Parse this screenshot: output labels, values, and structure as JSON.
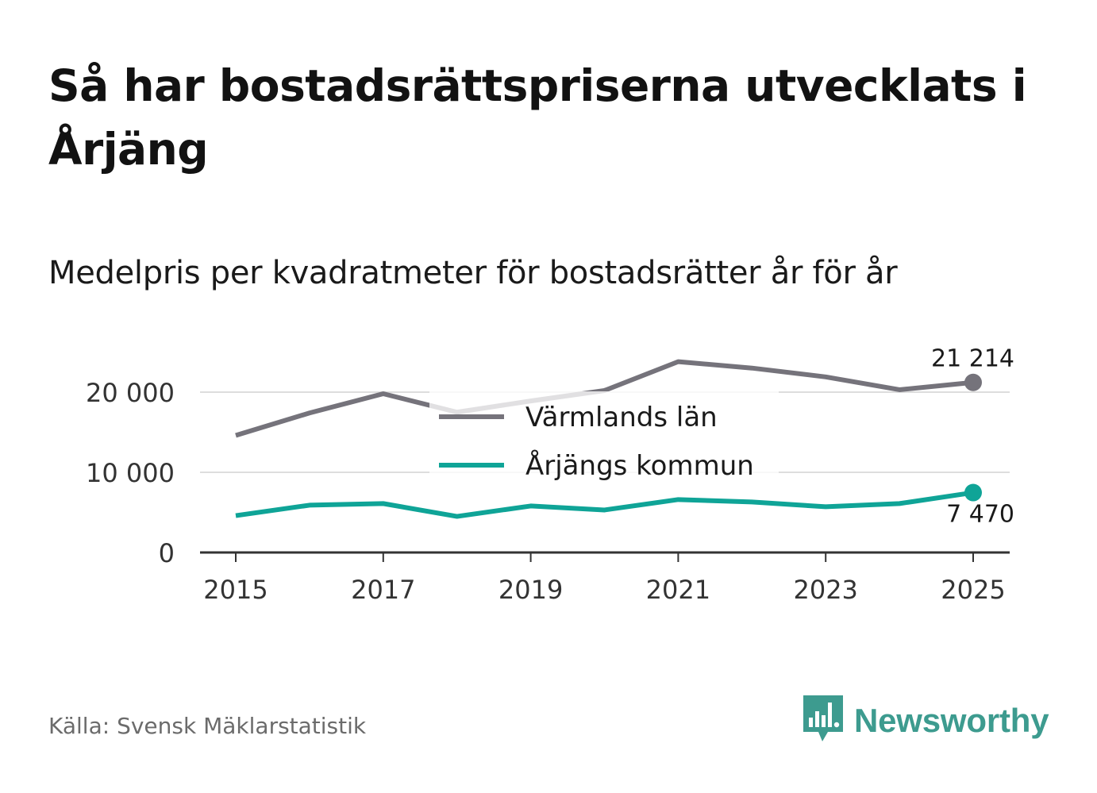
{
  "title": "Så har bostadsrättspriserna utvecklats i Årjäng",
  "subtitle": "Medelpris per kvadratmeter för bostadsrätter år för år",
  "source": "Källa: Svensk Mäklarstatistik",
  "brand": {
    "name": "Newsworthy",
    "color": "#3d9b8f",
    "icon": "newsworthy-logo-icon"
  },
  "chart_data": {
    "type": "line",
    "title": "Medelpris per kvadratmeter för bostadsrätter år för år",
    "xlabel": "",
    "ylabel": "",
    "x": [
      2015,
      2016,
      2017,
      2018,
      2019,
      2020,
      2021,
      2022,
      2023,
      2024,
      2025
    ],
    "xticks": [
      "2015",
      "2017",
      "2019",
      "2021",
      "2023",
      "2025"
    ],
    "xtick_values": [
      2015,
      2017,
      2019,
      2021,
      2023,
      2025
    ],
    "yticks": [
      "0",
      "10 000",
      "20 000"
    ],
    "ytick_values": [
      0,
      10000,
      20000
    ],
    "ylim": [
      0,
      26000
    ],
    "grid": true,
    "legend_position": "center",
    "series": [
      {
        "name": "Värmlands län",
        "color": "#75737b",
        "values": [
          14600,
          17400,
          19800,
          17500,
          18900,
          20200,
          23800,
          23000,
          21900,
          20300,
          21214
        ],
        "end_label": "21 214"
      },
      {
        "name": "Årjängs kommun",
        "color": "#0fa497",
        "values": [
          4600,
          5900,
          6100,
          4500,
          5800,
          5300,
          6600,
          6300,
          5700,
          6100,
          7470
        ],
        "end_label": "7 470"
      }
    ]
  }
}
